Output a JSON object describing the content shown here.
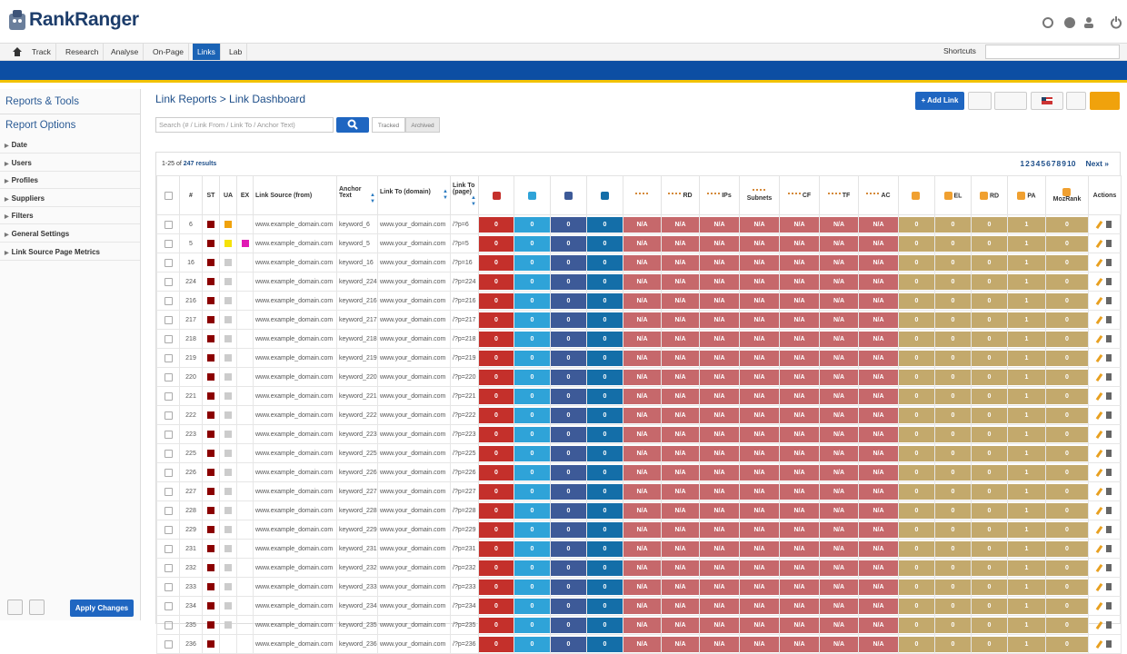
{
  "header": {
    "logo": "RankRanger"
  },
  "nav": {
    "tabs": [
      "Track",
      "Research",
      "Analyse",
      "On-Page",
      "Links",
      "Lab"
    ],
    "active": 4,
    "shortcuts": "Shortcuts"
  },
  "sidebar": {
    "reports_tools": "Reports & Tools",
    "report_options": "Report Options",
    "items": [
      "Date",
      "Users",
      "Profiles",
      "Suppliers",
      "Filters",
      "General Settings",
      "Link Source Page Metrics"
    ],
    "apply": "Apply Changes"
  },
  "main": {
    "breadcrumb": "Link Reports > Link Dashboard",
    "search_placeholder": "Search (# / Link From / Link To / Anchor Text)",
    "toggle": [
      "Tracked",
      "Archived"
    ],
    "add_link": "+ Add Link"
  },
  "table": {
    "summary": "1-25 of",
    "total": "247 results",
    "pages": [
      1,
      2,
      3,
      4,
      5,
      6,
      7,
      8,
      9,
      10
    ],
    "next": "Next »",
    "columns": [
      "#",
      "ST",
      "UA",
      "EX",
      "Link Source (from)",
      "Anchor Text",
      "Link To (domain)",
      "Link To (page)",
      "Actions"
    ],
    "metric_columns": [
      {
        "color": "#c4302b"
      },
      {
        "color": "#2fa3d8"
      },
      {
        "color": "#3d5a98"
      },
      {
        "color": "#146ea8"
      },
      {
        "color": "#c6686b"
      },
      {
        "label": "RD",
        "color": "#c6686b"
      },
      {
        "label": "IPs",
        "color": "#c6686b"
      },
      {
        "label": "Subnets",
        "color": "#c6686b"
      },
      {
        "label": "CF",
        "color": "#c6686b"
      },
      {
        "label": "TF",
        "color": "#c6686b"
      },
      {
        "label": "AC",
        "color": "#c6686b"
      },
      {
        "color": "#c3a96c"
      },
      {
        "label": "EL",
        "color": "#c3a96c"
      },
      {
        "label": "RD",
        "color": "#c3a96c"
      },
      {
        "label": "PA",
        "color": "#c3a96c"
      },
      {
        "label": "MozRank",
        "color": "#c3a96c"
      }
    ],
    "rows": [
      {
        "id": 6,
        "st": "#8b0000",
        "ua": "#f0a20c",
        "source": "www.example_domain.com",
        "anchor": "keyword_6",
        "domain": "www.your_domain.com",
        "page": "/?p=6",
        "metrics": [
          0,
          0,
          0,
          0,
          "N/A",
          "N/A",
          "N/A",
          "N/A",
          "N/A",
          "N/A",
          "N/A",
          0,
          0,
          0,
          1,
          0
        ]
      },
      {
        "id": 5,
        "st": "#8b0000",
        "ua": "#f5e20a",
        "ex": "#e01ab4",
        "source": "www.example_domain.com",
        "anchor": "keyword_5",
        "domain": "www.your_domain.com",
        "page": "/?p=5",
        "metrics": [
          0,
          0,
          0,
          0,
          "N/A",
          "N/A",
          "N/A",
          "N/A",
          "N/A",
          "N/A",
          "N/A",
          0,
          0,
          0,
          1,
          0
        ]
      },
      {
        "id": 16,
        "st": "#8b0000",
        "ua": "#cccccc",
        "source": "www.example_domain.com",
        "anchor": "keyword_16",
        "domain": "www.your_domain.com",
        "page": "/?p=16",
        "metrics": [
          0,
          0,
          0,
          0,
          "N/A",
          "N/A",
          "N/A",
          "N/A",
          "N/A",
          "N/A",
          "N/A",
          0,
          0,
          0,
          1,
          0
        ]
      },
      {
        "id": 224,
        "st": "#8b0000",
        "ua": "#cccccc",
        "source": "www.example_domain.com",
        "anchor": "keyword_224",
        "domain": "www.your_domain.com",
        "page": "/?p=224",
        "metrics": [
          0,
          0,
          0,
          0,
          "N/A",
          "N/A",
          "N/A",
          "N/A",
          "N/A",
          "N/A",
          "N/A",
          0,
          0,
          0,
          1,
          0
        ]
      },
      {
        "id": 216,
        "st": "#8b0000",
        "ua": "#cccccc",
        "source": "www.example_domain.com",
        "anchor": "keyword_216",
        "domain": "www.your_domain.com",
        "page": "/?p=216",
        "metrics": [
          0,
          0,
          0,
          0,
          "N/A",
          "N/A",
          "N/A",
          "N/A",
          "N/A",
          "N/A",
          "N/A",
          0,
          0,
          0,
          1,
          0
        ]
      },
      {
        "id": 217,
        "st": "#8b0000",
        "ua": "#cccccc",
        "source": "www.example_domain.com",
        "anchor": "keyword_217",
        "domain": "www.your_domain.com",
        "page": "/?p=217",
        "metrics": [
          0,
          0,
          0,
          0,
          "N/A",
          "N/A",
          "N/A",
          "N/A",
          "N/A",
          "N/A",
          "N/A",
          0,
          0,
          0,
          1,
          0
        ]
      },
      {
        "id": 218,
        "st": "#8b0000",
        "ua": "#cccccc",
        "source": "www.example_domain.com",
        "anchor": "keyword_218",
        "domain": "www.your_domain.com",
        "page": "/?p=218",
        "metrics": [
          0,
          0,
          0,
          0,
          "N/A",
          "N/A",
          "N/A",
          "N/A",
          "N/A",
          "N/A",
          "N/A",
          0,
          0,
          0,
          1,
          0
        ]
      },
      {
        "id": 219,
        "st": "#8b0000",
        "ua": "#cccccc",
        "source": "www.example_domain.com",
        "anchor": "keyword_219",
        "domain": "www.your_domain.com",
        "page": "/?p=219",
        "metrics": [
          0,
          0,
          0,
          0,
          "N/A",
          "N/A",
          "N/A",
          "N/A",
          "N/A",
          "N/A",
          "N/A",
          0,
          0,
          0,
          1,
          0
        ]
      },
      {
        "id": 220,
        "st": "#8b0000",
        "ua": "#cccccc",
        "source": "www.example_domain.com",
        "anchor": "keyword_220",
        "domain": "www.your_domain.com",
        "page": "/?p=220",
        "metrics": [
          0,
          0,
          0,
          0,
          "N/A",
          "N/A",
          "N/A",
          "N/A",
          "N/A",
          "N/A",
          "N/A",
          0,
          0,
          0,
          1,
          0
        ]
      },
      {
        "id": 221,
        "st": "#8b0000",
        "ua": "#cccccc",
        "source": "www.example_domain.com",
        "anchor": "keyword_221",
        "domain": "www.your_domain.com",
        "page": "/?p=221",
        "metrics": [
          0,
          0,
          0,
          0,
          "N/A",
          "N/A",
          "N/A",
          "N/A",
          "N/A",
          "N/A",
          "N/A",
          0,
          0,
          0,
          1,
          0
        ]
      },
      {
        "id": 222,
        "st": "#8b0000",
        "ua": "#cccccc",
        "source": "www.example_domain.com",
        "anchor": "keyword_222",
        "domain": "www.your_domain.com",
        "page": "/?p=222",
        "metrics": [
          0,
          0,
          0,
          0,
          "N/A",
          "N/A",
          "N/A",
          "N/A",
          "N/A",
          "N/A",
          "N/A",
          0,
          0,
          0,
          1,
          0
        ]
      },
      {
        "id": 223,
        "st": "#8b0000",
        "ua": "#cccccc",
        "source": "www.example_domain.com",
        "anchor": "keyword_223",
        "domain": "www.your_domain.com",
        "page": "/?p=223",
        "metrics": [
          0,
          0,
          0,
          0,
          "N/A",
          "N/A",
          "N/A",
          "N/A",
          "N/A",
          "N/A",
          "N/A",
          0,
          0,
          0,
          1,
          0
        ]
      },
      {
        "id": 225,
        "st": "#8b0000",
        "ua": "#cccccc",
        "source": "www.example_domain.com",
        "anchor": "keyword_225",
        "domain": "www.your_domain.com",
        "page": "/?p=225",
        "metrics": [
          0,
          0,
          0,
          0,
          "N/A",
          "N/A",
          "N/A",
          "N/A",
          "N/A",
          "N/A",
          "N/A",
          0,
          0,
          0,
          1,
          0
        ]
      },
      {
        "id": 226,
        "st": "#8b0000",
        "ua": "#cccccc",
        "source": "www.example_domain.com",
        "anchor": "keyword_226",
        "domain": "www.your_domain.com",
        "page": "/?p=226",
        "metrics": [
          0,
          0,
          0,
          0,
          "N/A",
          "N/A",
          "N/A",
          "N/A",
          "N/A",
          "N/A",
          "N/A",
          0,
          0,
          0,
          1,
          0
        ]
      },
      {
        "id": 227,
        "st": "#8b0000",
        "ua": "#cccccc",
        "source": "www.example_domain.com",
        "anchor": "keyword_227",
        "domain": "www.your_domain.com",
        "page": "/?p=227",
        "metrics": [
          0,
          0,
          0,
          0,
          "N/A",
          "N/A",
          "N/A",
          "N/A",
          "N/A",
          "N/A",
          "N/A",
          0,
          0,
          0,
          1,
          0
        ]
      },
      {
        "id": 228,
        "st": "#8b0000",
        "ua": "#cccccc",
        "source": "www.example_domain.com",
        "anchor": "keyword_228",
        "domain": "www.your_domain.com",
        "page": "/?p=228",
        "metrics": [
          0,
          0,
          0,
          0,
          "N/A",
          "N/A",
          "N/A",
          "N/A",
          "N/A",
          "N/A",
          "N/A",
          0,
          0,
          0,
          1,
          0
        ]
      },
      {
        "id": 229,
        "st": "#8b0000",
        "ua": "#cccccc",
        "source": "www.example_domain.com",
        "anchor": "keyword_229",
        "domain": "www.your_domain.com",
        "page": "/?p=229",
        "metrics": [
          0,
          0,
          0,
          0,
          "N/A",
          "N/A",
          "N/A",
          "N/A",
          "N/A",
          "N/A",
          "N/A",
          0,
          0,
          0,
          1,
          0
        ]
      },
      {
        "id": 231,
        "st": "#8b0000",
        "ua": "#cccccc",
        "source": "www.example_domain.com",
        "anchor": "keyword_231",
        "domain": "www.your_domain.com",
        "page": "/?p=231",
        "metrics": [
          0,
          0,
          0,
          0,
          "N/A",
          "N/A",
          "N/A",
          "N/A",
          "N/A",
          "N/A",
          "N/A",
          0,
          0,
          0,
          1,
          0
        ]
      },
      {
        "id": 232,
        "st": "#8b0000",
        "ua": "#cccccc",
        "source": "www.example_domain.com",
        "anchor": "keyword_232",
        "domain": "www.your_domain.com",
        "page": "/?p=232",
        "metrics": [
          0,
          0,
          0,
          0,
          "N/A",
          "N/A",
          "N/A",
          "N/A",
          "N/A",
          "N/A",
          "N/A",
          0,
          0,
          0,
          1,
          0
        ]
      },
      {
        "id": 233,
        "st": "#8b0000",
        "ua": "#cccccc",
        "source": "www.example_domain.com",
        "anchor": "keyword_233",
        "domain": "www.your_domain.com",
        "page": "/?p=233",
        "metrics": [
          0,
          0,
          0,
          0,
          "N/A",
          "N/A",
          "N/A",
          "N/A",
          "N/A",
          "N/A",
          "N/A",
          0,
          0,
          0,
          1,
          0
        ]
      },
      {
        "id": 234,
        "st": "#8b0000",
        "ua": "#cccccc",
        "source": "www.example_domain.com",
        "anchor": "keyword_234",
        "domain": "www.your_domain.com",
        "page": "/?p=234",
        "metrics": [
          0,
          0,
          0,
          0,
          "N/A",
          "N/A",
          "N/A",
          "N/A",
          "N/A",
          "N/A",
          "N/A",
          0,
          0,
          0,
          1,
          0
        ]
      },
      {
        "id": 235,
        "st": "#8b0000",
        "ua": "#cccccc",
        "source": "www.example_domain.com",
        "anchor": "keyword_235",
        "domain": "www.your_domain.com",
        "page": "/?p=235",
        "metrics": [
          0,
          0,
          0,
          0,
          "N/A",
          "N/A",
          "N/A",
          "N/A",
          "N/A",
          "N/A",
          "N/A",
          0,
          0,
          0,
          1,
          0
        ]
      },
      {
        "id": 236,
        "st": "#8b0000",
        "source": "www.example_domain.com",
        "anchor": "keyword_236",
        "domain": "www.your_domain.com",
        "page": "/?p=236",
        "metrics": [
          0,
          0,
          0,
          0,
          "N/A",
          "N/A",
          "N/A",
          "N/A",
          "N/A",
          "N/A",
          "N/A",
          0,
          0,
          0,
          1,
          0
        ]
      }
    ]
  }
}
